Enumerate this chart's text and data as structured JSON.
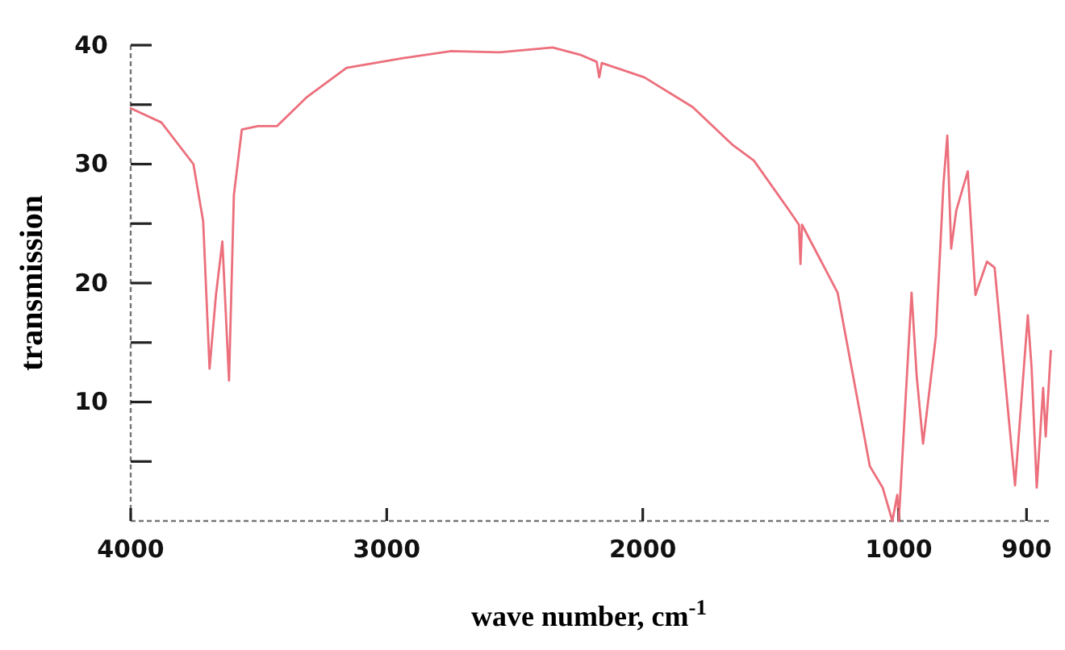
{
  "chart_data": [
    {
      "type": "line",
      "xlabel": "wave number, cm$^{-1}$",
      "ylabel": "transmission",
      "xlim": [
        4000,
        1000
      ],
      "xticks": [
        4000,
        3000,
        2000,
        {
          "value": 1000,
          "label": null
        }
      ],
      "ylim": [
        0,
        40
      ],
      "yticks": [
        {
          "value": 5,
          "label": null
        },
        10,
        {
          "value": 15,
          "label": null
        },
        20,
        {
          "value": 25,
          "label": null
        },
        30,
        {
          "value": 35,
          "label": null
        },
        40
      ],
      "grid": false,
      "marker": "none",
      "line_style": "solid",
      "series": [
        {
          "color": "#ec6f7c",
          "x": [
            4000,
            3880,
            3755,
            3717,
            3692,
            3667,
            3642,
            3616,
            3597,
            3566,
            3503,
            3428,
            3314,
            3157,
            2937,
            2748,
            2560,
            2352,
            2245,
            2180,
            2170,
            2160,
            1994,
            1805,
            1648,
            1566,
            1428,
            1390,
            1384,
            1378,
            1239,
            1113,
            1063,
            1025,
            1006,
            1000
          ],
          "values": [
            34.7,
            33.5,
            30,
            25.2,
            12.8,
            19,
            23.5,
            11.8,
            27.4,
            32.9,
            33.2,
            33.2,
            35.6,
            38.1,
            38.9,
            39.5,
            39.4,
            39.8,
            39.2,
            38.6,
            37.3,
            38.5,
            37.3,
            34.8,
            31.6,
            30.3,
            26.1,
            24.9,
            21.6,
            24.9,
            19.2,
            4.6,
            2.8,
            0,
            2.2,
            0
          ]
        }
      ]
    },
    {
      "type": "line",
      "xlim": [
        1000,
        880
      ],
      "xticks": [
        1000,
        900
      ],
      "ylim": [
        0,
        40
      ],
      "tick_labels": "x",
      "grid": false,
      "marker": "none",
      "line_style": "solid",
      "series": [
        {
          "color": "#ec6f7c",
          "x": [
            1000,
            990,
            986,
            981,
            971,
            965,
            962,
            959,
            955,
            946,
            940,
            931,
            925,
            909,
            899,
            896,
            892,
            887,
            885,
            881
          ],
          "values": [
            0,
            19.2,
            12.2,
            6.5,
            15.5,
            28.4,
            32.4,
            22.9,
            26.1,
            29.4,
            19,
            21.8,
            21.3,
            3,
            17.3,
            12.8,
            2.8,
            11.2,
            7.1,
            14.3
          ]
        }
      ]
    }
  ]
}
